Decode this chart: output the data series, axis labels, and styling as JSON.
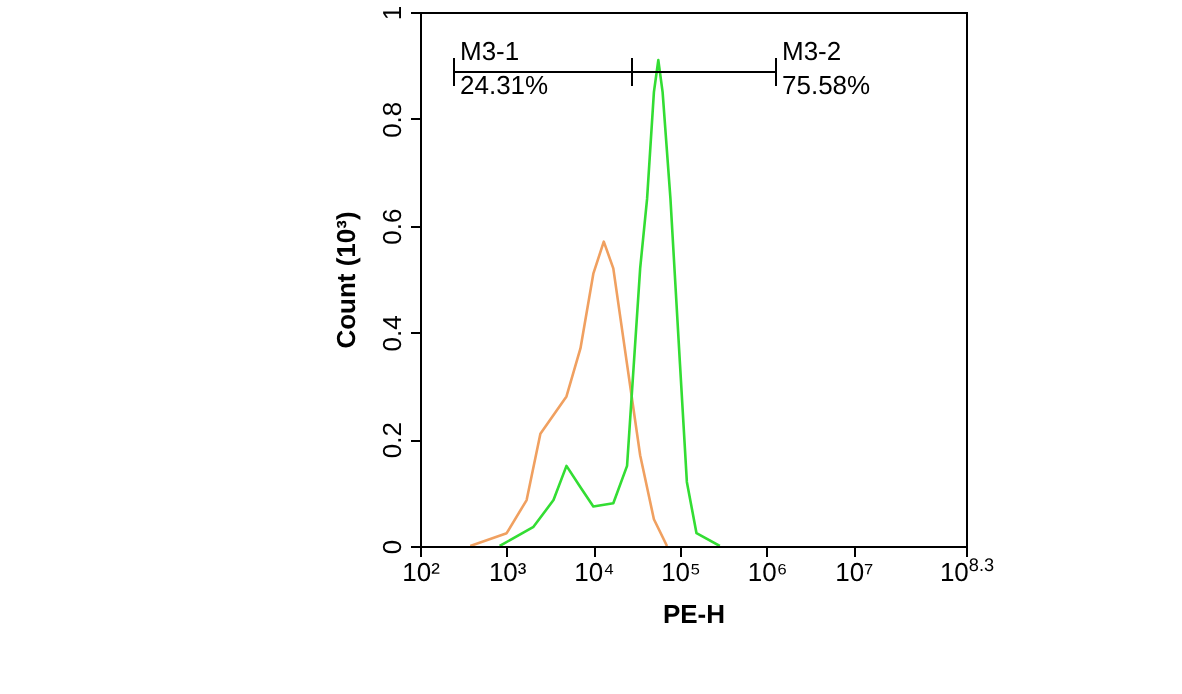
{
  "chart_data": {
    "type": "line",
    "xlabel": "PE-H",
    "ylabel": "Count (10³)",
    "log": "x",
    "xlim": [
      100,
      199526231
    ],
    "ylim": [
      0,
      1
    ],
    "xticks": [
      {
        "value": 100,
        "label": "10²"
      },
      {
        "value": 1000,
        "label": "10³"
      },
      {
        "value": 10000,
        "label": "10⁴"
      },
      {
        "value": 100000,
        "label": "10⁵"
      },
      {
        "value": 1000000,
        "label": "10⁶"
      },
      {
        "value": 10000000,
        "label": "10⁷"
      },
      {
        "value": 199526231,
        "label": "10$^{8.3}$"
      }
    ],
    "yticks": [
      0,
      0.2,
      0.4,
      0.6,
      0.8,
      1
    ],
    "grid": false,
    "marker": "none",
    "line_style": "solid",
    "series": [
      {
        "color": "#f0a060",
        "x": [
          380,
          1000,
          1700,
          2450,
          4900,
          7100,
          10000,
          13200,
          17000,
          24500,
          34700,
          50000,
          70800
        ],
        "values": [
          0,
          0.024,
          0.086,
          0.21,
          0.28,
          0.37,
          0.51,
          0.57,
          0.52,
          0.34,
          0.17,
          0.05,
          0
        ]
      },
      {
        "color": "#33dd33",
        "x": [
          830,
          2040,
          3470,
          4900,
          7100,
          10000,
          17000,
          24500,
          34700,
          41700,
          50000,
          56200,
          63000,
          77600,
          100000,
          120000,
          155000,
          288000
        ],
        "values": [
          0,
          0.036,
          0.086,
          0.15,
          0.11,
          0.074,
          0.08,
          0.15,
          0.52,
          0.65,
          0.85,
          0.91,
          0.85,
          0.65,
          0.34,
          0.12,
          0.024,
          0
        ]
      }
    ],
    "annotations": [
      "M3-1",
      "24.31%",
      "M3-2",
      "75.58%"
    ]
  }
}
